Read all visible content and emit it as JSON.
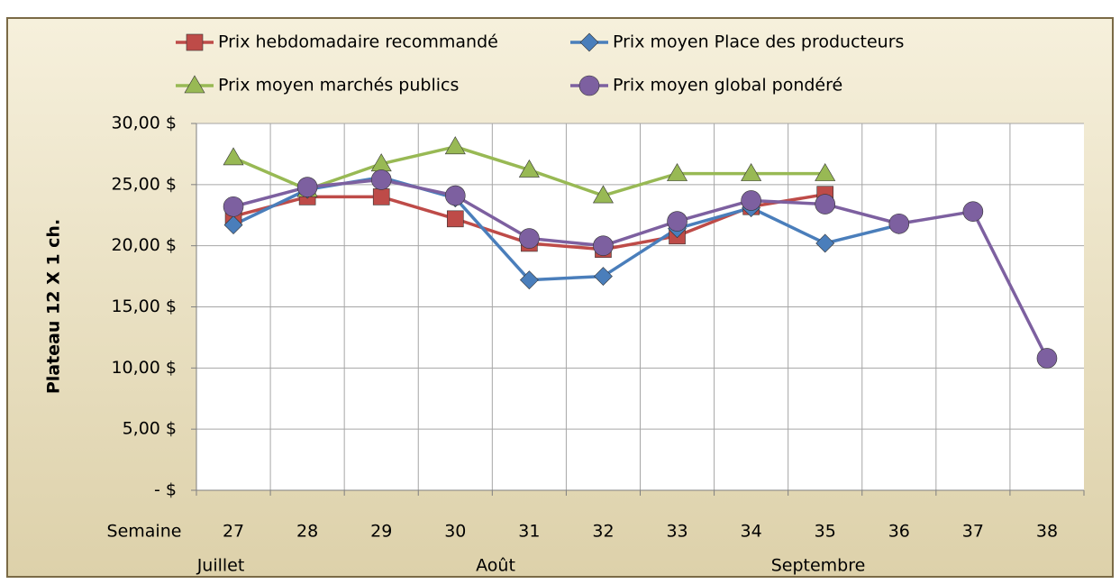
{
  "chart_data": {
    "type": "line",
    "y_axis_label": "Plateau 12 X 1 ch.",
    "x_axis_label": "Semaine",
    "categories": [
      "27",
      "28",
      "29",
      "30",
      "31",
      "32",
      "33",
      "34",
      "35",
      "36",
      "37",
      "38"
    ],
    "months": [
      "Juillet",
      "Août",
      "Septembre"
    ],
    "series": [
      {
        "name": "Prix hebdomadaire recommandé",
        "color": "#be4b48",
        "marker": "square",
        "values": [
          22.4,
          24.0,
          24.0,
          22.2,
          20.2,
          19.7,
          20.8,
          23.2,
          24.2,
          null,
          null,
          null
        ]
      },
      {
        "name": "Prix moyen Place des producteurs",
        "color": "#4a7ebb",
        "marker": "diamond",
        "values": [
          21.7,
          24.6,
          25.6,
          23.9,
          17.2,
          17.5,
          21.4,
          23.1,
          20.2,
          21.7,
          null,
          null
        ]
      },
      {
        "name": "Prix moyen marchés publics",
        "color": "#98b954",
        "marker": "triangle",
        "values": [
          27.2,
          24.6,
          26.7,
          28.1,
          26.2,
          24.1,
          25.9,
          25.9,
          25.9,
          null,
          null,
          null
        ]
      },
      {
        "name": "Prix moyen global pondéré",
        "color": "#7d60a0",
        "marker": "circle",
        "values": [
          23.2,
          24.8,
          25.4,
          24.1,
          20.6,
          20.0,
          22.0,
          23.7,
          23.4,
          21.8,
          22.8,
          10.8
        ]
      }
    ],
    "ylim": [
      0,
      30
    ],
    "yticks": [
      {
        "value": 0,
        "label": "-  $"
      },
      {
        "value": 5,
        "label": "5,00 $"
      },
      {
        "value": 10,
        "label": "10,00 $"
      },
      {
        "value": 15,
        "label": "15,00 $"
      },
      {
        "value": 20,
        "label": "20,00 $"
      },
      {
        "value": 25,
        "label": "25,00 $"
      },
      {
        "value": 30,
        "label": "30,00 $"
      }
    ],
    "grid": true
  }
}
